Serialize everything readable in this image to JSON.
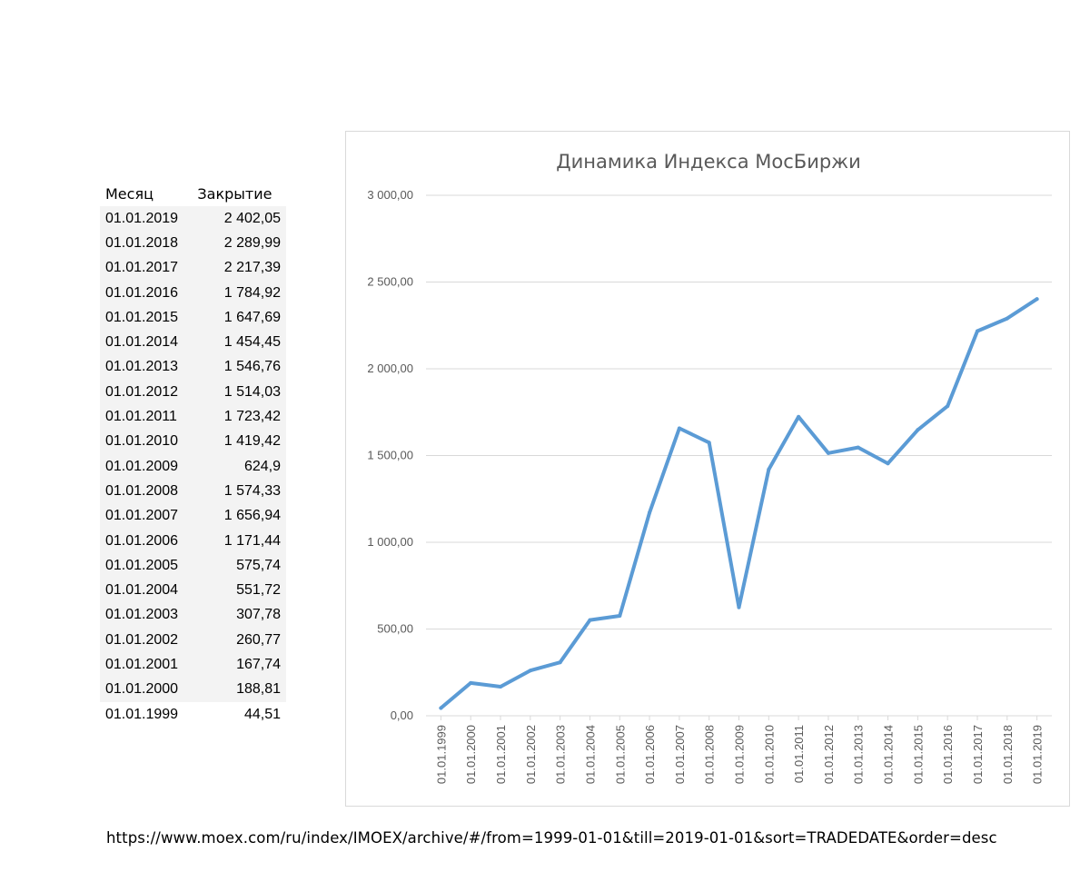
{
  "table": {
    "headers": {
      "month": "Месяц",
      "close": "Закрытие"
    },
    "rows": [
      {
        "date": "01.01.2019",
        "close": "2 402,05"
      },
      {
        "date": "01.01.2018",
        "close": "2 289,99"
      },
      {
        "date": "01.01.2017",
        "close": "2 217,39"
      },
      {
        "date": "01.01.2016",
        "close": "1 784,92"
      },
      {
        "date": "01.01.2015",
        "close": "1 647,69"
      },
      {
        "date": "01.01.2014",
        "close": "1 454,45"
      },
      {
        "date": "01.01.2013",
        "close": "1 546,76"
      },
      {
        "date": "01.01.2012",
        "close": "1 514,03"
      },
      {
        "date": "01.01.2011",
        "close": "1 723,42"
      },
      {
        "date": "01.01.2010",
        "close": "1 419,42"
      },
      {
        "date": "01.01.2009",
        "close": "624,9"
      },
      {
        "date": "01.01.2008",
        "close": "1 574,33"
      },
      {
        "date": "01.01.2007",
        "close": "1 656,94"
      },
      {
        "date": "01.01.2006",
        "close": "1 171,44"
      },
      {
        "date": "01.01.2005",
        "close": "575,74"
      },
      {
        "date": "01.01.2004",
        "close": "551,72"
      },
      {
        "date": "01.01.2003",
        "close": "307,78"
      },
      {
        "date": "01.01.2002",
        "close": "260,77"
      },
      {
        "date": "01.01.2001",
        "close": "167,74"
      },
      {
        "date": "01.01.2000",
        "close": "188,81"
      },
      {
        "date": "01.01.1999",
        "close": "44,51"
      }
    ]
  },
  "chart_data": {
    "type": "line",
    "title": "Динамика Индекса МосБиржи",
    "xlabel": "",
    "ylabel": "",
    "ylim": [
      0,
      3000
    ],
    "yticks": [
      0,
      500,
      1000,
      1500,
      2000,
      2500,
      3000
    ],
    "ytick_labels": [
      "0,00",
      "500,00",
      "1 000,00",
      "1 500,00",
      "2 000,00",
      "2 500,00",
      "3 000,00"
    ],
    "grid": true,
    "line_color": "#5b9bd5",
    "categories": [
      "01.01.1999",
      "01.01.2000",
      "01.01.2001",
      "01.01.2002",
      "01.01.2003",
      "01.01.2004",
      "01.01.2005",
      "01.01.2006",
      "01.01.2007",
      "01.01.2008",
      "01.01.2009",
      "01.01.2010",
      "01.01.2011",
      "01.01.2012",
      "01.01.2013",
      "01.01.2014",
      "01.01.2015",
      "01.01.2016",
      "01.01.2017",
      "01.01.2018",
      "01.01.2019"
    ],
    "series": [
      {
        "name": "Закрытие",
        "values": [
          44.51,
          188.81,
          167.74,
          260.77,
          307.78,
          551.72,
          575.74,
          1171.44,
          1656.94,
          1574.33,
          624.9,
          1419.42,
          1723.42,
          1514.03,
          1546.76,
          1454.45,
          1647.69,
          1784.92,
          2217.39,
          2289.99,
          2402.05
        ]
      }
    ]
  },
  "source_url": "https://www.moex.com/ru/index/IMOEX/archive/#/from=1999-01-01&till=2019-01-01&sort=TRADEDATE&order=desc"
}
